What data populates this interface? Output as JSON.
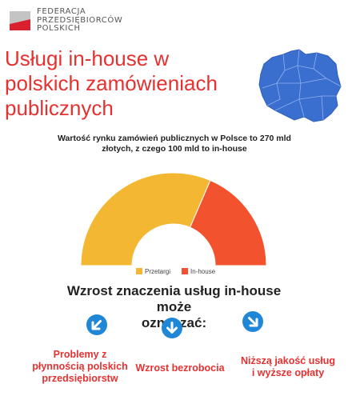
{
  "logo": {
    "lines": [
      "FEDERACJA",
      "PRZEDSIĘBIORCÓW",
      "POLSKICH"
    ],
    "colors": {
      "red": "#d9202e",
      "grey": "#b9b9b9"
    }
  },
  "title_lines": [
    "Usługi in-house w",
    "polskich zamówieniach",
    "publicznych"
  ],
  "subtitle_lines": [
    "Wartość rynku zamówień publicznych w Polsce to 270 mld",
    "złotych, z czego 100 mld to in-house"
  ],
  "chart_data": {
    "type": "pie",
    "variant": "semicircle-donut",
    "title": "Wartość rynku zamówień publicznych w Polsce to 270 mld złotych, z czego 100 mld to in-house",
    "categories": [
      "Przetargi",
      "In-house"
    ],
    "values": [
      170,
      100
    ],
    "colors": [
      "#f4b731",
      "#f2532e"
    ],
    "legend": "bottom"
  },
  "heading_lines": [
    "Wzrost znaczenia usług in-house może",
    "oznaczać:"
  ],
  "consequences": [
    {
      "icon": "arrow-down-left-icon",
      "lines": [
        "Problemy z",
        "płynnością polskich",
        "przedsiębiorstw"
      ]
    },
    {
      "icon": "arrow-down-icon",
      "lines": [
        "Wzrost bezrobocia"
      ]
    },
    {
      "icon": "arrow-down-right-icon",
      "lines": [
        "Niższą jakość usług",
        "i wyższe opłaty"
      ]
    }
  ],
  "icon_color": "#1f87d6",
  "map_color": "#3a6fd0"
}
